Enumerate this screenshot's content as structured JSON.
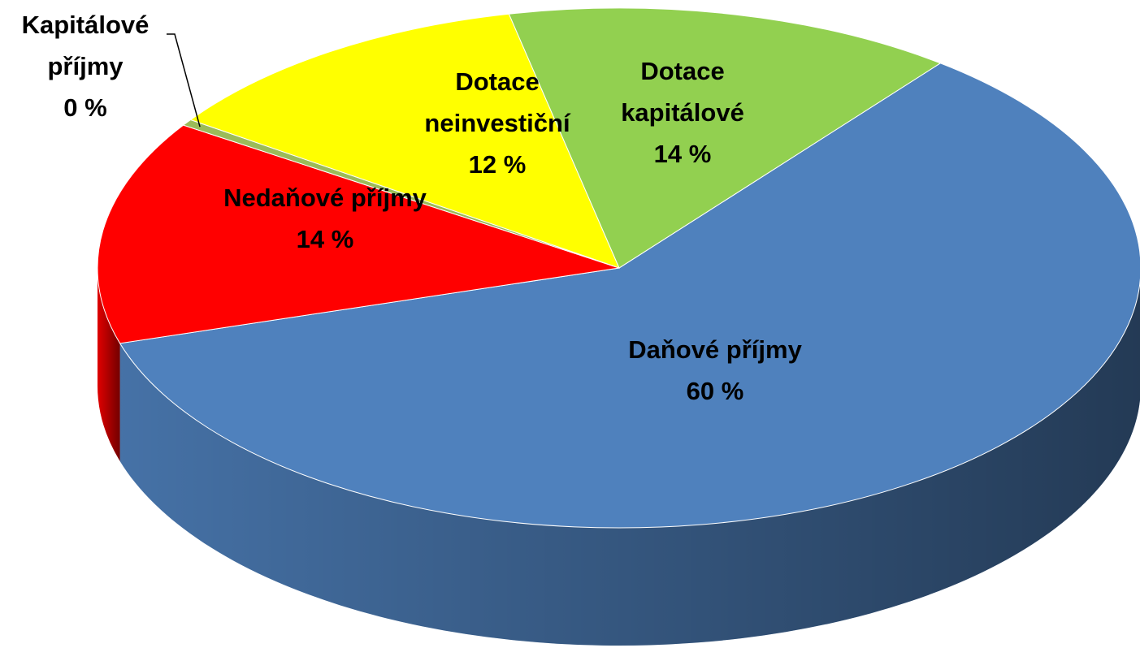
{
  "chart_data": {
    "type": "pie",
    "categories": [
      "Daňové příjmy",
      "Nedaňové příjmy",
      "Kapitálové příjmy",
      "Dotace neinvestiční",
      "Dotace kapitálové"
    ],
    "values": [
      60,
      14,
      0.4,
      12,
      14
    ],
    "value_labels": [
      "60 %",
      "14 %",
      "0 %",
      "12 %",
      "14 %"
    ],
    "colors": [
      "#4f81bd",
      "#ff0000",
      "#9bbb59",
      "#ffff00",
      "#92d050"
    ],
    "label_colors": [
      "#000000",
      "#000000",
      "#000000",
      "#000000",
      "#000000"
    ]
  }
}
